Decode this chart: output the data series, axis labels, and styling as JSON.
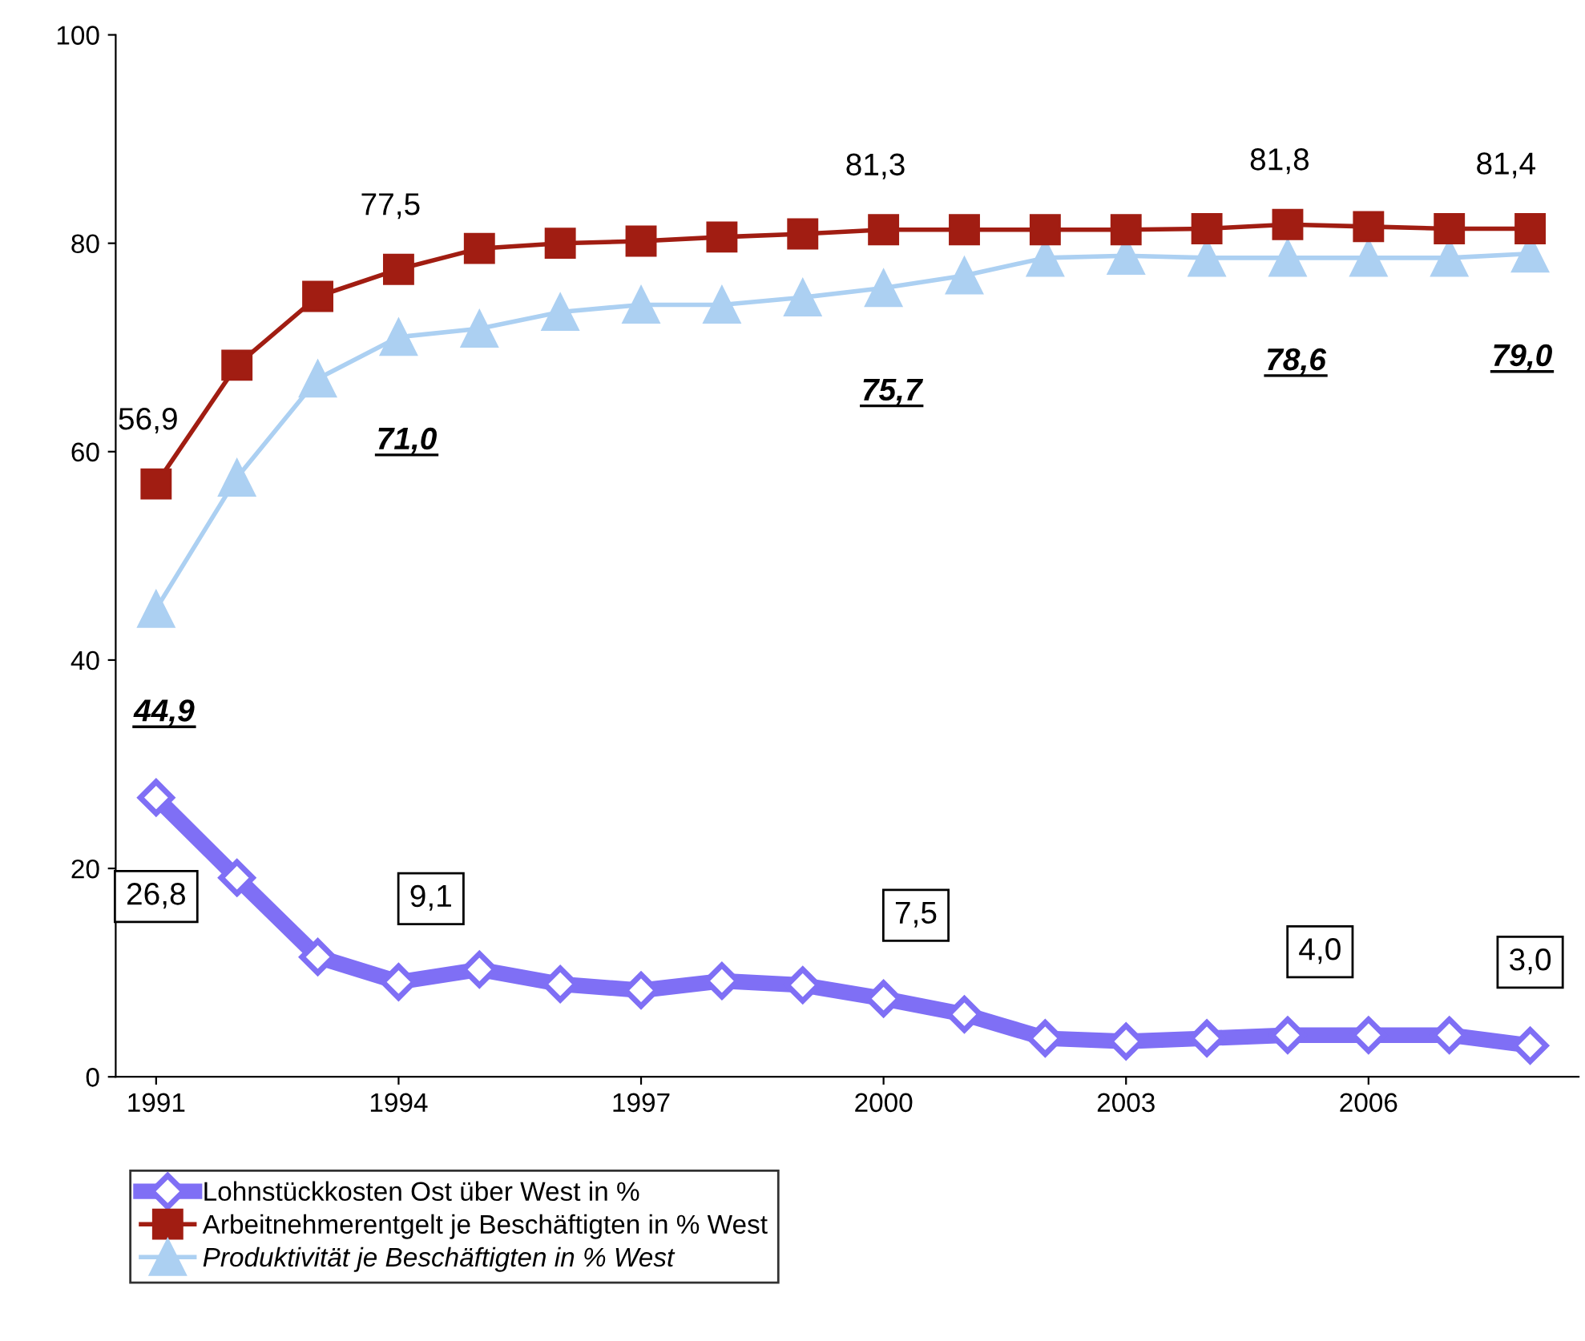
{
  "chart_data": {
    "type": "line",
    "x": [
      1991,
      1992,
      1993,
      1994,
      1995,
      1996,
      1997,
      1998,
      1999,
      2000,
      2001,
      2002,
      2003,
      2004,
      2005,
      2006,
      2007,
      2008
    ],
    "series": [
      {
        "name": "Lohnstückkosten Ost über West in %",
        "color": "#7f6ff5",
        "marker": "diamond",
        "values": [
          26.8,
          19.1,
          11.5,
          9.1,
          10.3,
          8.9,
          8.3,
          9.2,
          8.8,
          7.5,
          6.0,
          3.7,
          3.4,
          3.7,
          4.0,
          4.0,
          4.0,
          3.0
        ],
        "value_labels": [
          "26,8",
          null,
          null,
          "9,1",
          null,
          null,
          null,
          null,
          null,
          "7,5",
          null,
          null,
          null,
          null,
          "4,0",
          null,
          null,
          "3,0"
        ]
      },
      {
        "name": "Arbeitnehmerentgelt je Beschäftigten in % West",
        "color": "#a11d12",
        "marker": "square",
        "values": [
          56.9,
          68.3,
          74.9,
          77.5,
          79.5,
          80.0,
          80.2,
          80.6,
          80.9,
          81.3,
          81.3,
          81.3,
          81.3,
          81.4,
          81.8,
          81.6,
          81.4,
          81.4
        ],
        "value_labels": [
          "56,9",
          null,
          null,
          "77,5",
          null,
          null,
          null,
          null,
          null,
          "81,3",
          null,
          null,
          null,
          null,
          "81,8",
          null,
          null,
          "81,4"
        ]
      },
      {
        "name": "Produktivität je Beschäftigten in % West",
        "color": "#acd0f2",
        "marker": "triangle",
        "values": [
          44.9,
          57.5,
          67.0,
          71.0,
          71.8,
          73.4,
          74.1,
          74.1,
          74.8,
          75.7,
          76.9,
          78.6,
          78.8,
          78.6,
          78.6,
          78.6,
          78.6,
          79.0
        ],
        "value_labels": [
          "44,9",
          null,
          null,
          "71,0",
          null,
          null,
          null,
          null,
          null,
          "75,7",
          null,
          null,
          null,
          null,
          "78,6",
          null,
          null,
          "79,0"
        ]
      }
    ],
    "xlim": [
      1990.5,
      2008.6
    ],
    "xticks": [
      1991,
      1994,
      1997,
      2000,
      2003,
      2006
    ],
    "ylim": [
      0,
      100
    ],
    "yticks": [
      0,
      20,
      40,
      60,
      80,
      100
    ],
    "grid": false,
    "legend": "bottom"
  }
}
